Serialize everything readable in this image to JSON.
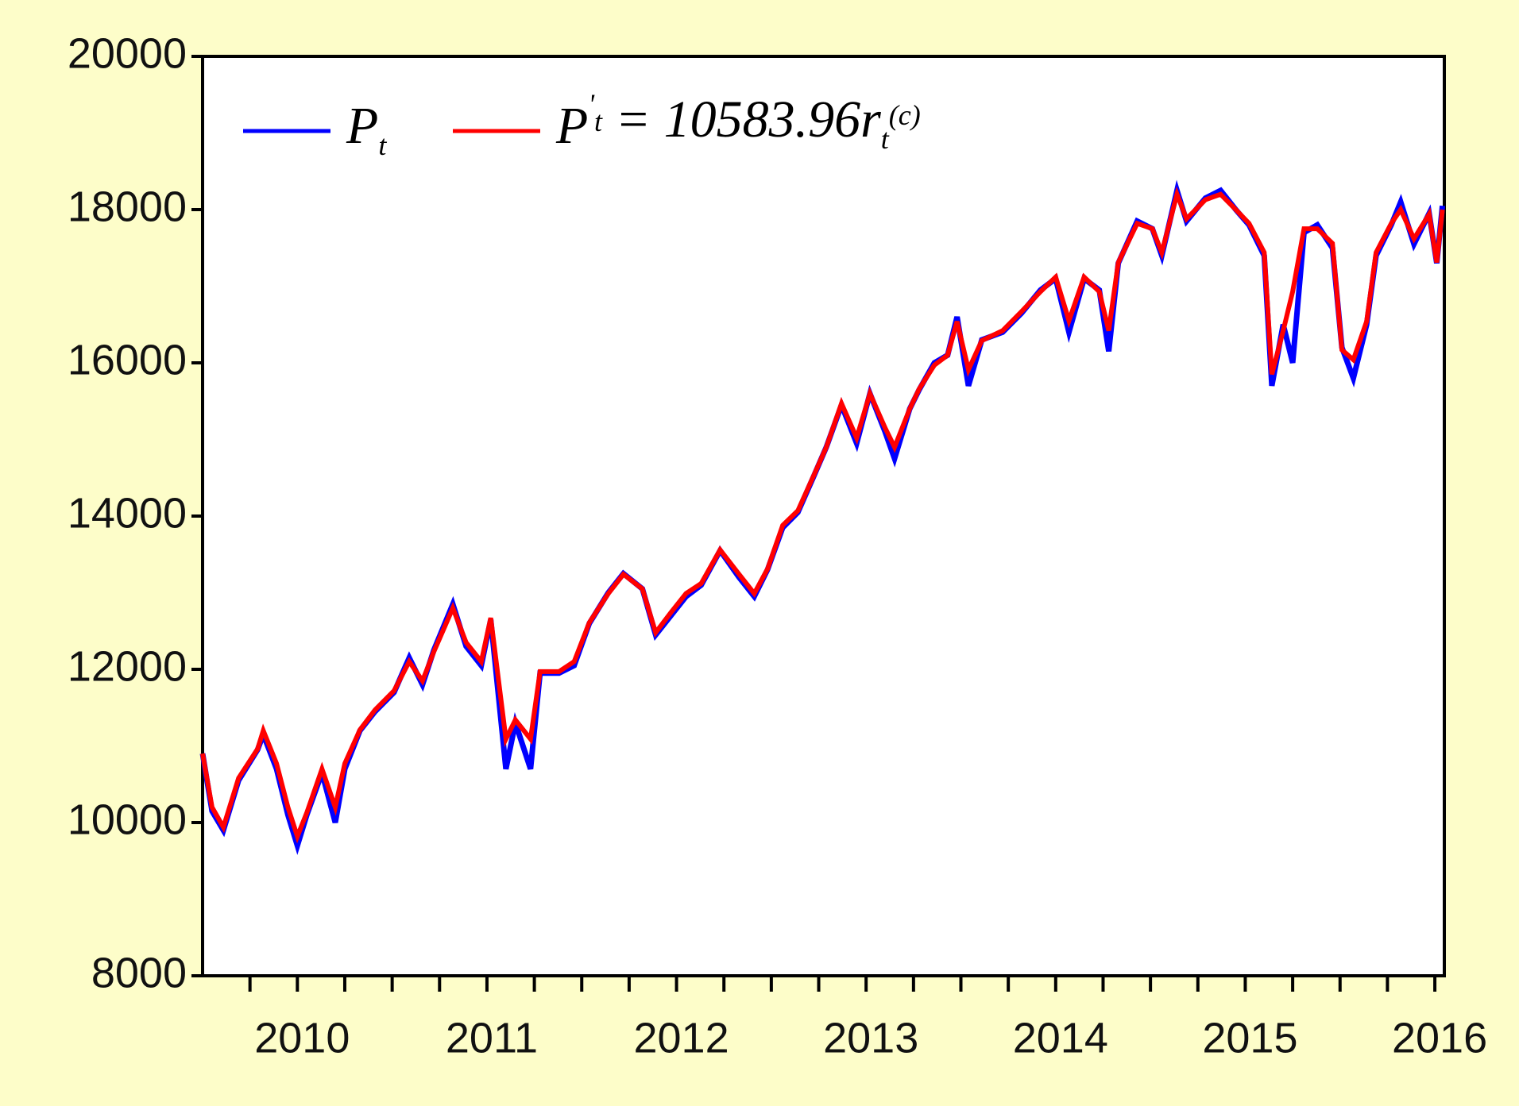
{
  "chart_data": {
    "type": "line",
    "x": [
      2009.5,
      2009.55,
      2009.61,
      2009.69,
      2009.79,
      2009.82,
      2009.89,
      2009.95,
      2010.0,
      2010.05,
      2010.13,
      2010.2,
      2010.25,
      2010.33,
      2010.41,
      2010.51,
      2010.59,
      2010.66,
      2010.72,
      2010.82,
      2010.89,
      2010.97,
      2011.02,
      2011.1,
      2011.15,
      2011.23,
      2011.28,
      2011.38,
      2011.46,
      2011.54,
      2011.64,
      2011.72,
      2011.82,
      2011.89,
      2011.97,
      2012.05,
      2012.13,
      2012.23,
      2012.33,
      2012.41,
      2012.48,
      2012.56,
      2012.64,
      2012.72,
      2012.79,
      2012.87,
      2012.95,
      2013.02,
      2013.1,
      2013.15,
      2013.23,
      2013.28,
      2013.36,
      2013.43,
      2013.48,
      2013.54,
      2013.61,
      2013.72,
      2013.82,
      2013.92,
      2014.0,
      2014.07,
      2014.15,
      2014.23,
      2014.28,
      2014.33,
      2014.43,
      2014.51,
      2014.56,
      2014.64,
      2014.69,
      2014.79,
      2014.87,
      2014.95,
      2015.02,
      2015.1,
      2015.14,
      2015.2,
      2015.25,
      2015.31,
      2015.38,
      2015.46,
      2015.51,
      2015.57,
      2015.64,
      2015.69,
      2015.77,
      2015.82,
      2015.89,
      2015.97,
      2016.01,
      2016.04
    ],
    "series": [
      {
        "name": "P_t",
        "color": "#0000ff",
        "values": [
          10900,
          10150,
          9900,
          10550,
          10950,
          11150,
          10700,
          10100,
          9700,
          10100,
          10650,
          10000,
          10700,
          11200,
          11450,
          11700,
          12150,
          11800,
          12250,
          12850,
          12300,
          12050,
          12650,
          10700,
          11300,
          10700,
          11950,
          11950,
          12050,
          12600,
          13000,
          13250,
          13050,
          12450,
          12700,
          12950,
          13100,
          13550,
          13200,
          12950,
          13300,
          13850,
          14050,
          14500,
          14900,
          15450,
          14950,
          15600,
          15100,
          14750,
          15400,
          15650,
          16000,
          16100,
          16600,
          15700,
          16300,
          16400,
          16650,
          16950,
          17100,
          16400,
          17100,
          16950,
          16150,
          17300,
          17850,
          17750,
          17400,
          18250,
          17850,
          18150,
          18250,
          18000,
          17800,
          17400,
          15700,
          16500,
          16000,
          17700,
          17800,
          17500,
          16200,
          15800,
          16500,
          17400,
          17800,
          18100,
          17550,
          17950,
          17300,
          18050
        ]
      },
      {
        "name": "P'_t = 10583.96r_t^(c)",
        "color": "#ff0000",
        "values": [
          10900,
          10200,
          9940,
          10580,
          10960,
          11200,
          10770,
          10200,
          9820,
          10130,
          10700,
          10200,
          10770,
          11210,
          11470,
          11720,
          12100,
          11850,
          12230,
          12800,
          12350,
          12100,
          12670,
          11090,
          11340,
          11090,
          11970,
          11970,
          12100,
          12610,
          12990,
          13240,
          13050,
          12480,
          12740,
          12990,
          13120,
          13560,
          13240,
          12990,
          13310,
          13880,
          14070,
          14510,
          14900,
          15470,
          15020,
          15600,
          15150,
          14900,
          15400,
          15660,
          15970,
          16100,
          16540,
          15910,
          16290,
          16420,
          16670,
          16930,
          17120,
          16550,
          17120,
          16930,
          16420,
          17310,
          17820,
          17750,
          17440,
          18200,
          17880,
          18130,
          18200,
          18000,
          17820,
          17440,
          15850,
          16420,
          16930,
          17750,
          17750,
          17560,
          16170,
          16040,
          16540,
          17440,
          17820,
          18000,
          17620,
          17940,
          17310,
          18000
        ]
      }
    ],
    "xlim": [
      2009.5,
      2016.05
    ],
    "xticks": [
      2010,
      2011,
      2012,
      2013,
      2014,
      2015,
      2016
    ],
    "ylim": [
      8000,
      20000
    ],
    "yticks": [
      8000,
      10000,
      12000,
      14000,
      16000,
      18000,
      20000
    ],
    "legend": "upper-left"
  }
}
